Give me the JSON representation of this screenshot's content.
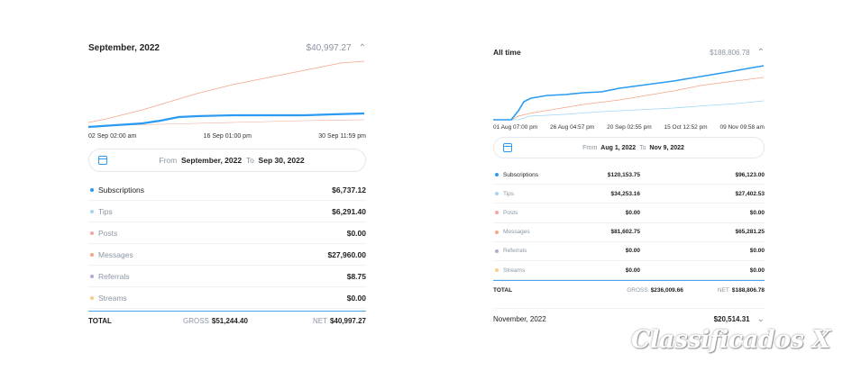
{
  "panel1": {
    "title": "September, 2022",
    "total": "$40,997.27",
    "x_ticks": [
      "02 Sep 02:00 am",
      "16 Sep 01:00 pm",
      "30 Sep 11:59 pm"
    ],
    "range": {
      "from_label": "From",
      "from": "September, 2022",
      "to_label": "To",
      "to": "Sep 30, 2022"
    },
    "rows": [
      {
        "label": "Subscriptions",
        "value": "$6,737.12",
        "color": "#2a9bf1",
        "muted": false
      },
      {
        "label": "Tips",
        "value": "$6,291.40",
        "color": "#9fd6f5",
        "muted": true
      },
      {
        "label": "Posts",
        "value": "$0.00",
        "color": "#f2a6a0",
        "muted": true
      },
      {
        "label": "Messages",
        "value": "$27,960.00",
        "color": "#f5a58a",
        "muted": true
      },
      {
        "label": "Referrals",
        "value": "$8.75",
        "color": "#b9a6d9",
        "muted": true
      },
      {
        "label": "Streams",
        "value": "$0.00",
        "color": "#f5cf8a",
        "muted": true
      }
    ],
    "totals": {
      "label": "TOTAL",
      "gross_label": "GROSS",
      "gross": "$51,244.40",
      "net_label": "NET",
      "net": "$40,997.27"
    }
  },
  "panel2": {
    "title": "All time",
    "total": "$188,806.78",
    "x_ticks": [
      "01 Aug 07:00 pm",
      "26 Aug 04:57 pm",
      "20 Sep 02:55 pm",
      "15 Oct 12:52 pm",
      "09 Nov 09:58 am"
    ],
    "range": {
      "from_label": "From",
      "from": "Aug 1, 2022",
      "to_label": "To",
      "to": "Nov 9, 2022"
    },
    "rows": [
      {
        "label": "Subscriptions",
        "gross": "$120,153.75",
        "net": "$96,123.00",
        "color": "#2a9bf1",
        "muted": false
      },
      {
        "label": "Tips",
        "gross": "$34,253.16",
        "net": "$27,402.53",
        "color": "#9fd6f5",
        "muted": true
      },
      {
        "label": "Posts",
        "gross": "$0.00",
        "net": "$0.00",
        "color": "#f2a6a0",
        "muted": true
      },
      {
        "label": "Messages",
        "gross": "$81,602.75",
        "net": "$65,281.25",
        "color": "#f5a58a",
        "muted": true
      },
      {
        "label": "Referrals",
        "gross": "$0.00",
        "net": "$0.00",
        "color": "#b9a6d9",
        "muted": true
      },
      {
        "label": "Streams",
        "gross": "$0.00",
        "net": "$0.00",
        "color": "#f5cf8a",
        "muted": true
      }
    ],
    "totals": {
      "label": "TOTAL",
      "gross_label": "GROSS",
      "gross": "$236,009.66",
      "net_label": "NET",
      "net": "$188,806.78"
    },
    "month_row": {
      "label": "November, 2022",
      "amount": "$20,514.31"
    }
  },
  "icons": {
    "collapse": "chevron-up-icon",
    "expand": "chevron-down-icon",
    "calendar": "calendar-icon"
  },
  "watermark": "Classificados X"
}
